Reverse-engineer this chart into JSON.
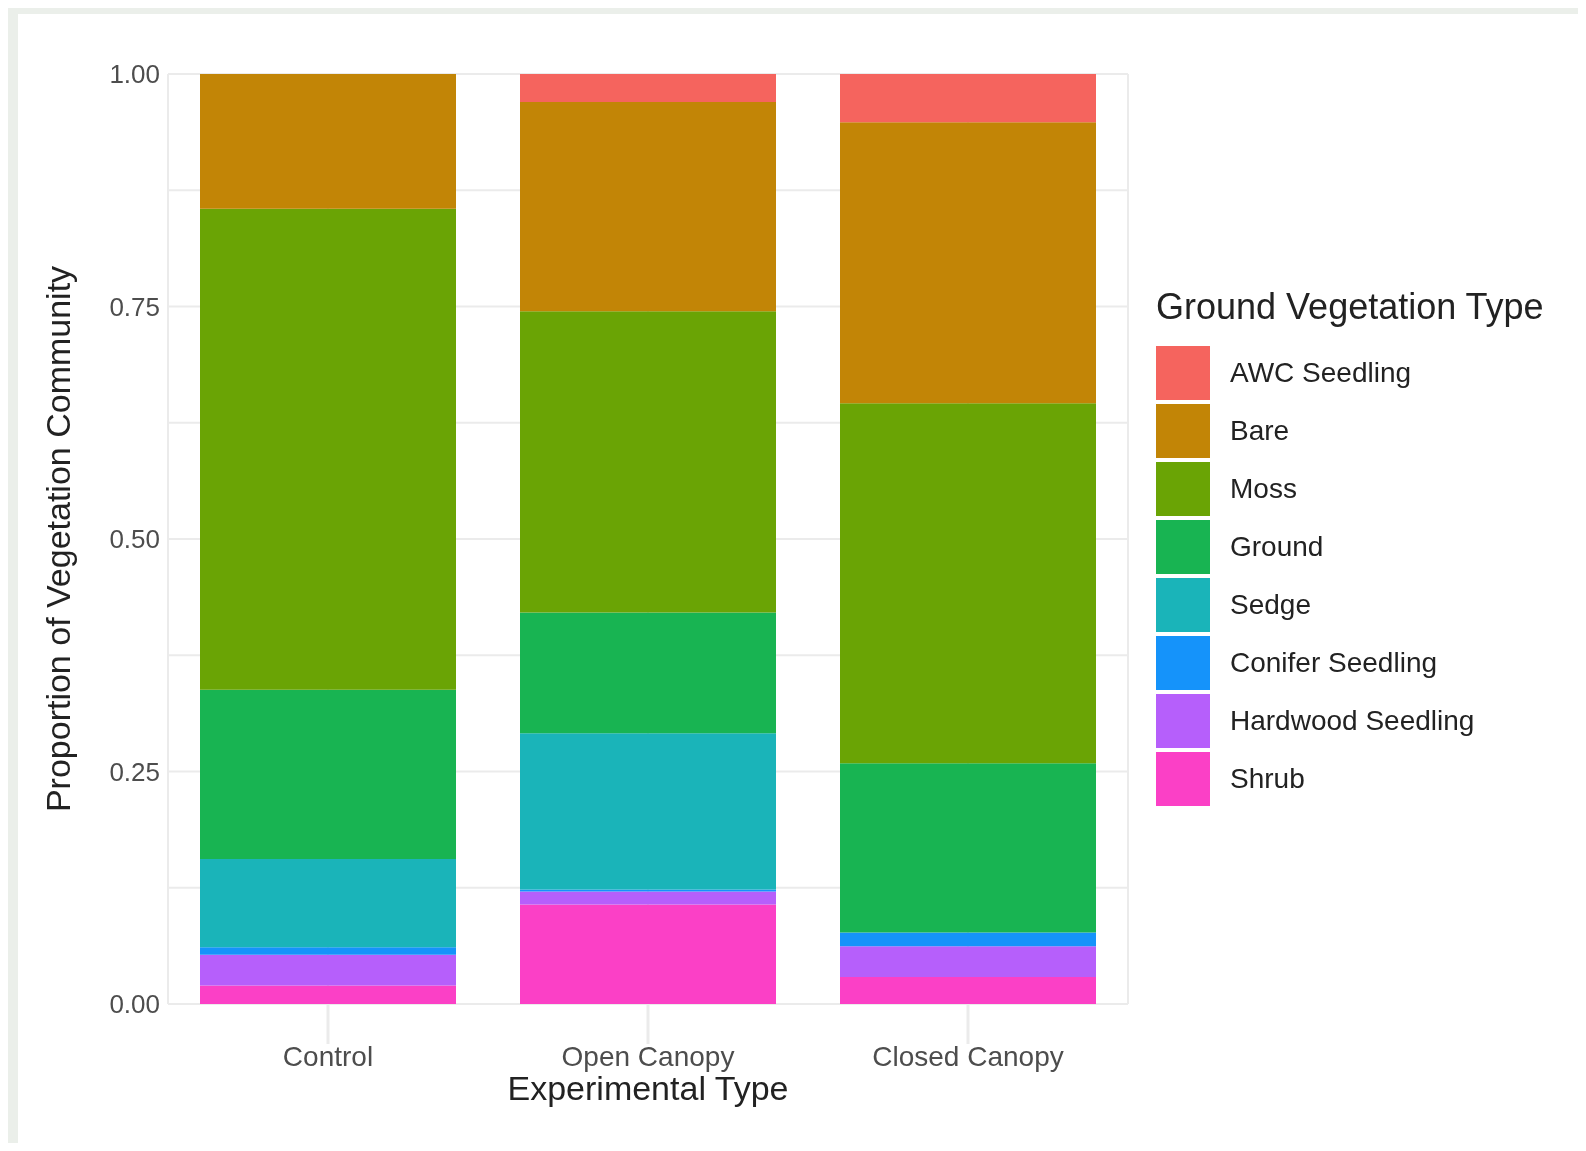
{
  "chart_data": {
    "type": "bar",
    "stacked": true,
    "xlabel": "Experimental Type",
    "ylabel": "Proportion of Vegetation Community",
    "legend_title": "Ground Vegetation Type",
    "legend": "right",
    "grid": true,
    "categories": [
      "Control",
      "Open Canopy",
      "Closed Canopy"
    ],
    "ylim": [
      0,
      1
    ],
    "yticks": [
      {
        "value": 0,
        "label": "0.00"
      },
      {
        "value": 0.25,
        "label": "0.25"
      },
      {
        "value": 0.5,
        "label": "0.50"
      },
      {
        "value": 0.75,
        "label": "0.75"
      },
      {
        "value": 1,
        "label": "1.00"
      }
    ],
    "series": [
      {
        "name": "Shrub",
        "color": "#fb40c6",
        "values": [
          0.02,
          0.107,
          0.029
        ]
      },
      {
        "name": "Hardwood Seedling",
        "color": "#b65ffb",
        "values": [
          0.033,
          0.014,
          0.033
        ]
      },
      {
        "name": "Conifer Seedling",
        "color": "#1593fa",
        "values": [
          0.008,
          0.002,
          0.015
        ]
      },
      {
        "name": "Sedge",
        "color": "#1ab4b9",
        "values": [
          0.095,
          0.168,
          0
        ]
      },
      {
        "name": "Ground",
        "color": "#18b452",
        "values": [
          0.182,
          0.13,
          0.182
        ]
      },
      {
        "name": "Moss",
        "color": "#6aa405",
        "values": [
          0.517,
          0.324,
          0.387
        ]
      },
      {
        "name": "Bare",
        "color": "#c28506",
        "values": [
          0.146,
          0.225,
          0.302
        ]
      },
      {
        "name": "AWC Seedling",
        "color": "#f5645e",
        "values": [
          0,
          0.03,
          0.052
        ]
      }
    ]
  }
}
